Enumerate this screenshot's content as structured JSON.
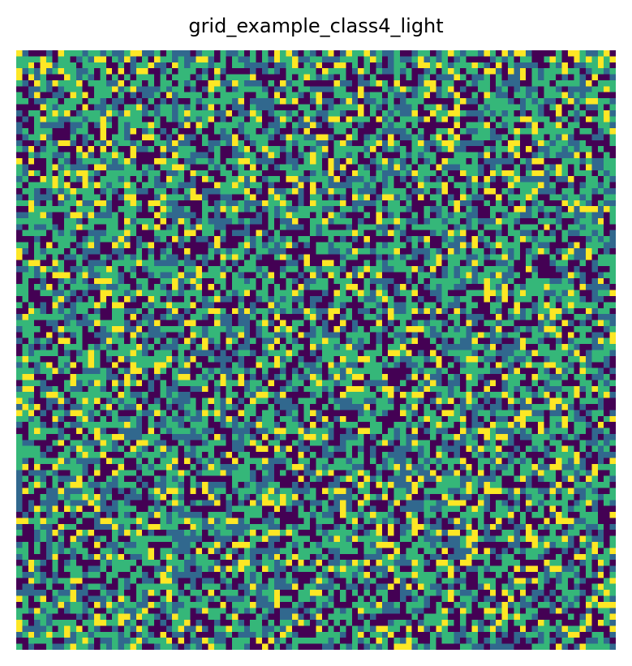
{
  "chart_data": {
    "type": "heatmap",
    "title": "grid_example_class4_light",
    "xlabel": "",
    "ylabel": "",
    "axes_visible": false,
    "grid": false,
    "legend": "none",
    "rows": 100,
    "cols": 100,
    "classes": [
      0,
      1,
      2,
      3
    ],
    "colormap": {
      "0": "#440154",
      "1": "#31688e",
      "2": "#35b779",
      "3": "#fde725"
    },
    "class_proportions": {
      "0": 0.28,
      "1": 0.26,
      "2": 0.34,
      "3": 0.12
    },
    "values_note_seed": 4
  }
}
